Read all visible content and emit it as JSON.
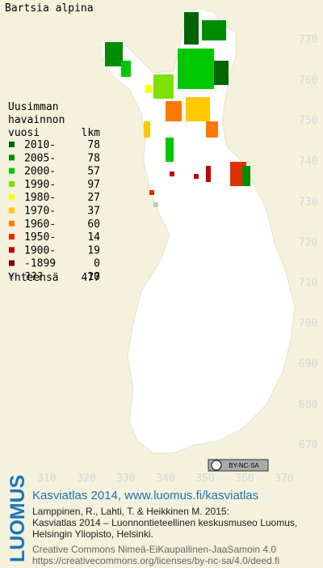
{
  "title": "Bartsia alpina",
  "legend": {
    "heading": [
      "Uusimman",
      "havainnon"
    ],
    "col1": "vuosi",
    "col2": "lkm",
    "rows": [
      {
        "label": "2010-",
        "count": 78,
        "color": "#006400"
      },
      {
        "label": "2005-",
        "count": 78,
        "color": "#008c00"
      },
      {
        "label": "2000-",
        "count": 57,
        "color": "#00c800"
      },
      {
        "label": "1990-",
        "count": 97,
        "color": "#80e000"
      },
      {
        "label": "1980-",
        "count": 27,
        "color": "#ffff00"
      },
      {
        "label": "1970-",
        "count": 37,
        "color": "#ffc800"
      },
      {
        "label": "1960-",
        "count": 60,
        "color": "#ff7800"
      },
      {
        "label": "1950-",
        "count": 14,
        "color": "#e03000"
      },
      {
        "label": "1900-",
        "count": 19,
        "color": "#c00000"
      },
      {
        "label": "-1899",
        "count": 0,
        "color": "#800000"
      },
      {
        "label": "???",
        "count": 10,
        "color": "#c8c8c8"
      }
    ],
    "total_label": "Yhteensä",
    "total": 477
  },
  "grid": {
    "y_labels": [
      770,
      760,
      750,
      740,
      730,
      720,
      710,
      700,
      690,
      680,
      670
    ],
    "x_labels": [
      310,
      320,
      330,
      340,
      350,
      360,
      370
    ]
  },
  "license_badge": "BY-NC-SA",
  "footer": {
    "logo": "LUOMUS",
    "headline": "Kasviatlas 2014, www.luomus.fi/kasviatlas",
    "citation": [
      "Lamppinen, R., Lahti, T. & Heikkinen M. 2015:",
      "Kasviatlas 2014 – Luonnontieteellinen keskusmuseo Luomus,",
      "Helsingin Yliopisto, Helsinki."
    ],
    "license": [
      "Creative Commons Nimeä-EiKaupallinen-JaaSamoin 4.0",
      "https://creativecommons.org/licenses/by-nc-sa/4.0/deed.fi"
    ]
  }
}
